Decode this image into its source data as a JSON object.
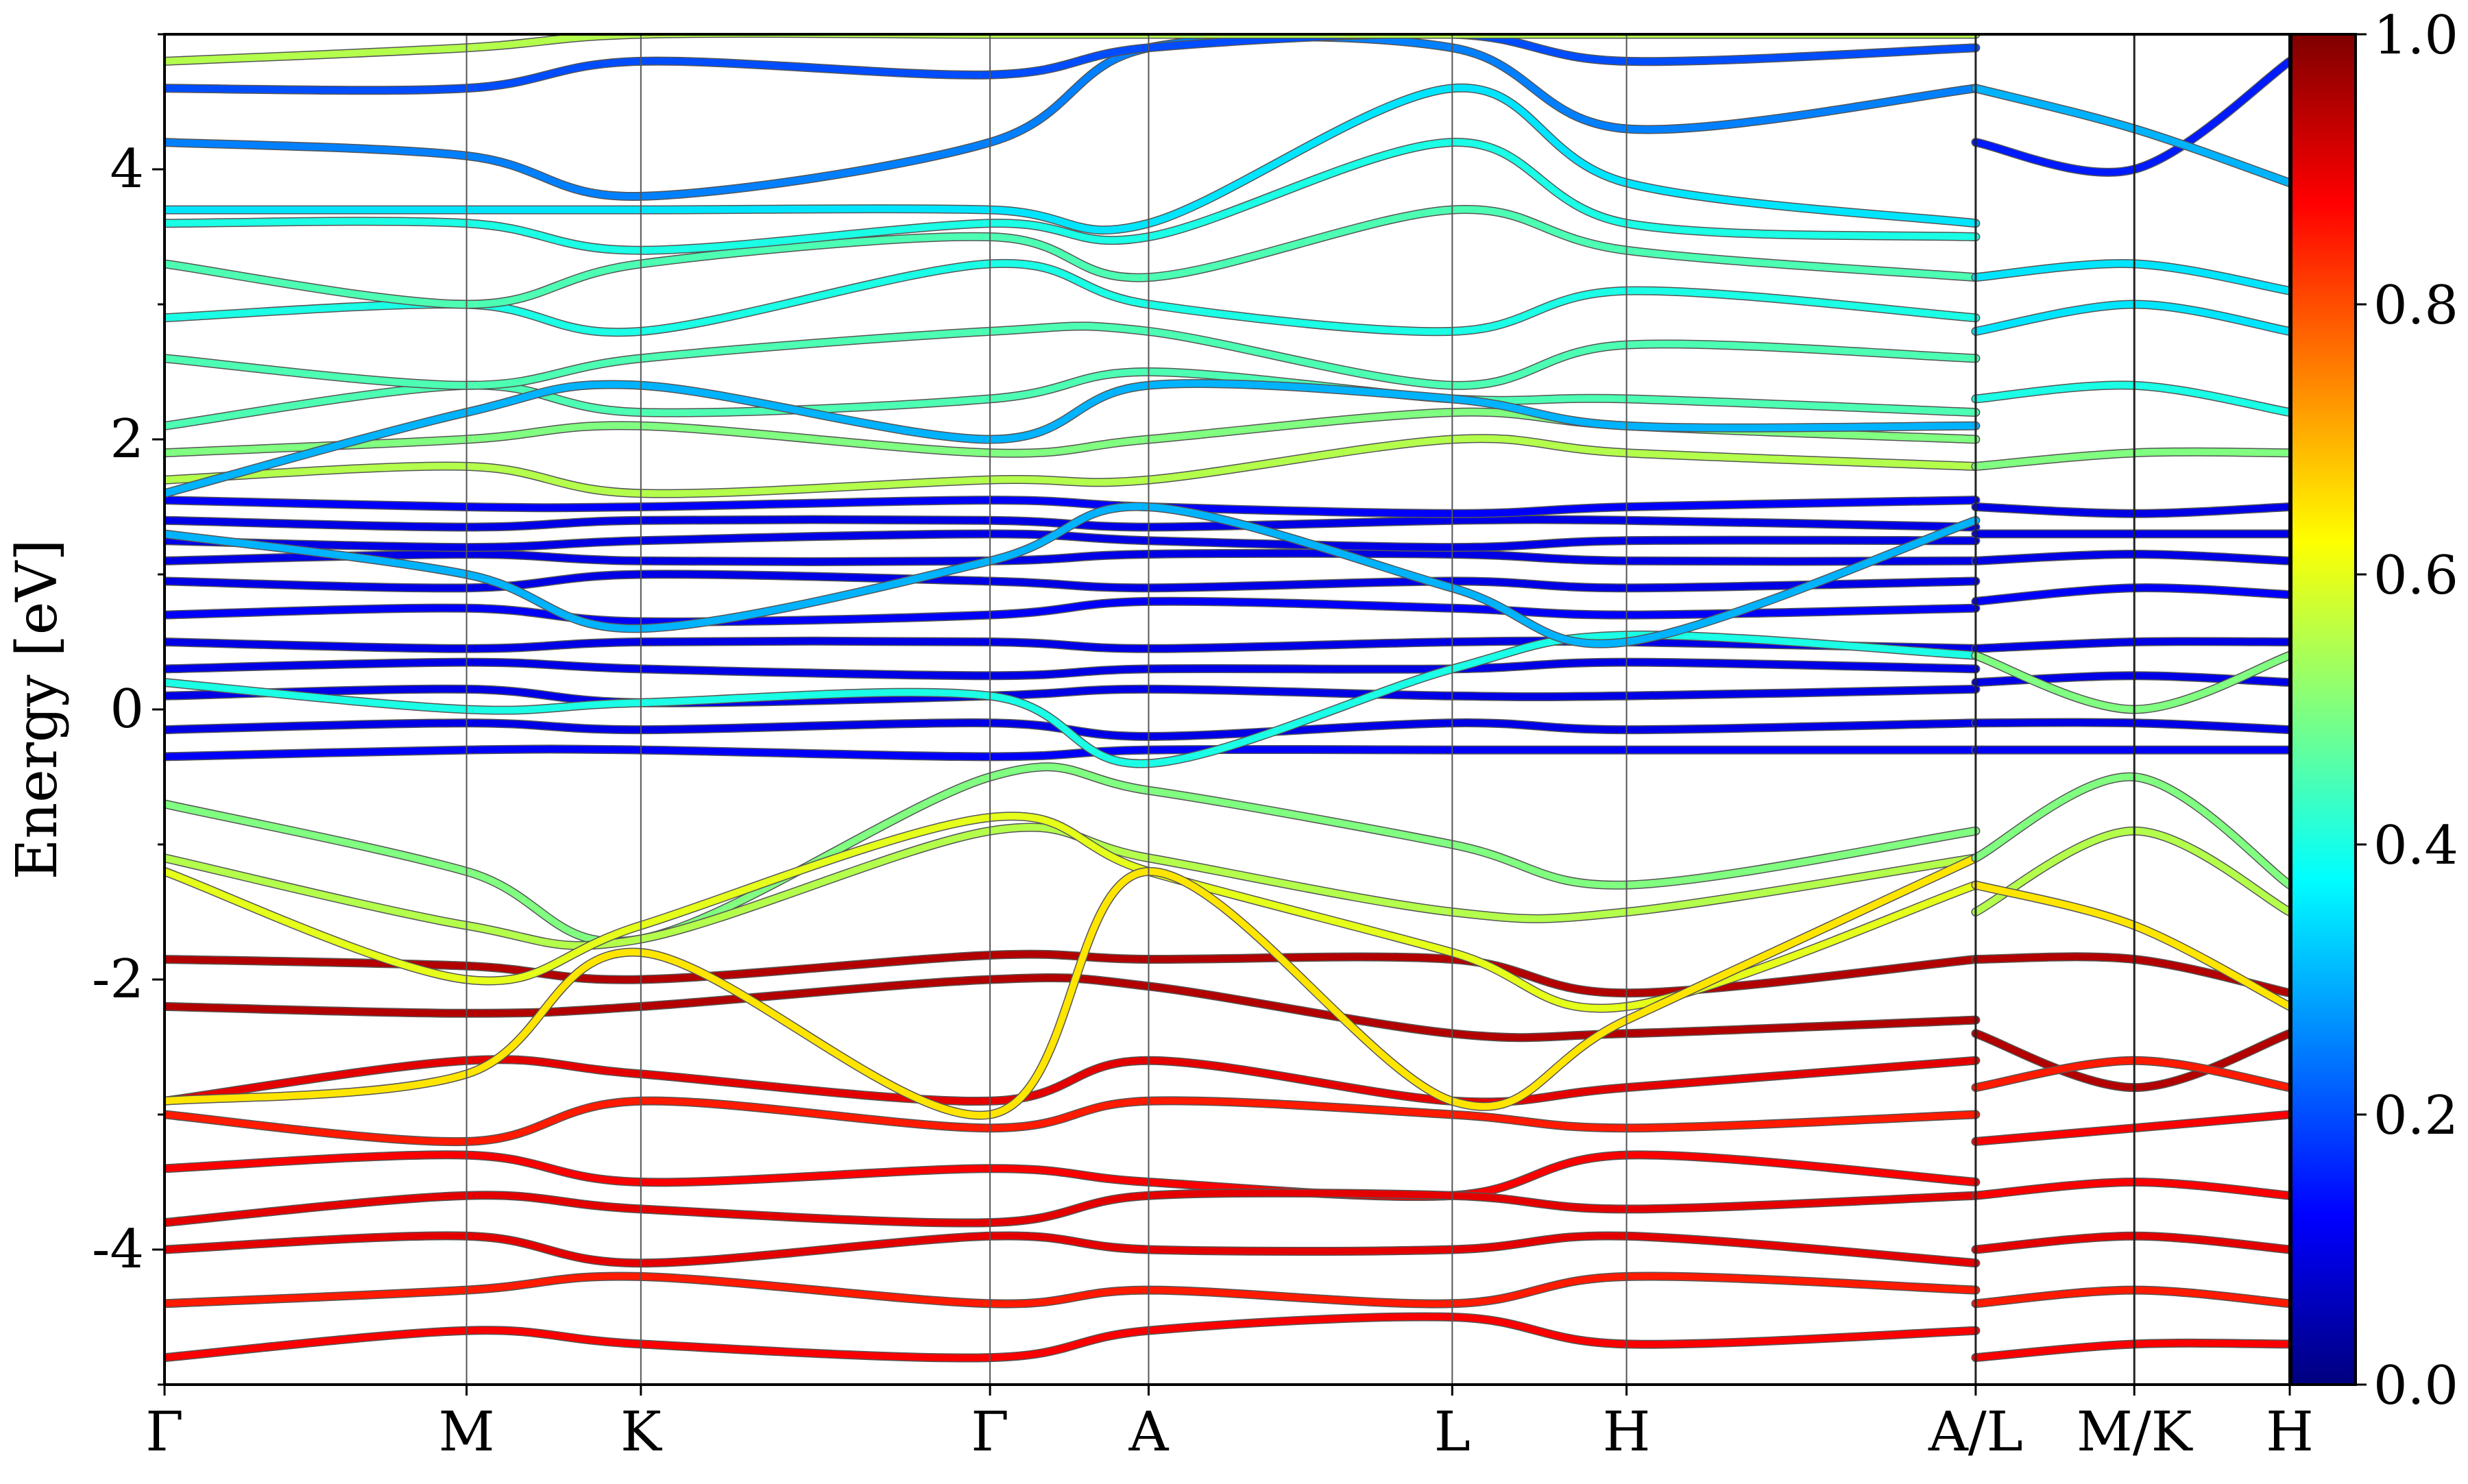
{
  "chart_data": {
    "type": "line",
    "title": "",
    "xlabel": "",
    "ylabel": "Energy [eV]",
    "ylim": [
      -5,
      5
    ],
    "y_ticks": [
      -4,
      -2,
      0,
      2,
      4
    ],
    "y_tick_labels": [
      "-4",
      "-2",
      "0",
      "2",
      "4"
    ],
    "x_ticks": [
      0,
      0.577,
      0.91,
      1.577,
      1.88,
      2.46,
      2.793,
      3.46,
      3.763,
      4.06
    ],
    "x_tick_labels": [
      "Γ",
      "M",
      "K",
      "Γ",
      "A",
      "L",
      "H",
      "A/L",
      "M/K",
      "H"
    ],
    "xlim": [
      0,
      4.06
    ],
    "grid": "vertical lines at high-symmetry points",
    "colormap": "jet",
    "colorbar": {
      "range": [
        0,
        1
      ],
      "ticks": [
        0.0,
        0.2,
        0.4,
        0.6,
        0.8,
        1.0
      ],
      "tick_labels": [
        "0.0",
        "0.2",
        "0.4",
        "0.6",
        "0.8",
        "1.0"
      ]
    },
    "bands": [
      {
        "k": [
          0,
          0.577,
          0.91,
          1.577,
          1.88,
          2.46,
          2.793,
          3.46
        ],
        "e": [
          -1.85,
          -1.9,
          -2.0,
          -1.82,
          -1.85,
          -1.85,
          -2.1,
          -1.85
        ],
        "w": 0.95
      },
      {
        "k": [
          0,
          0.577,
          0.91,
          1.577,
          1.88,
          2.46,
          2.793,
          3.46
        ],
        "e": [
          -2.2,
          -2.25,
          -2.2,
          -2.0,
          -2.05,
          -2.4,
          -2.4,
          -2.3
        ],
        "w": 0.95
      },
      {
        "k": [
          0,
          0.577,
          0.91,
          1.577,
          1.88,
          2.46,
          2.793,
          3.46
        ],
        "e": [
          -2.9,
          -2.6,
          -2.7,
          -2.9,
          -2.6,
          -2.9,
          -2.8,
          -2.6
        ],
        "w": 0.9
      },
      {
        "k": [
          0,
          0.577,
          0.91,
          1.577,
          1.88,
          2.46,
          2.793,
          3.46
        ],
        "e": [
          -3.0,
          -3.2,
          -2.9,
          -3.1,
          -2.9,
          -3.0,
          -3.1,
          -3.0
        ],
        "w": 0.85
      },
      {
        "k": [
          0,
          0.577,
          0.91,
          1.577,
          1.88,
          2.46,
          2.793,
          3.46
        ],
        "e": [
          -3.4,
          -3.3,
          -3.5,
          -3.4,
          -3.5,
          -3.6,
          -3.3,
          -3.5
        ],
        "w": 0.88
      },
      {
        "k": [
          0,
          0.577,
          0.91,
          1.577,
          1.88,
          2.46,
          2.793,
          3.46
        ],
        "e": [
          -3.8,
          -3.6,
          -3.7,
          -3.8,
          -3.6,
          -3.6,
          -3.7,
          -3.6
        ],
        "w": 0.9
      },
      {
        "k": [
          0,
          0.577,
          0.91,
          1.577,
          1.88,
          2.46,
          2.793,
          3.46
        ],
        "e": [
          -4.0,
          -3.9,
          -4.1,
          -3.9,
          -4.0,
          -4.0,
          -3.9,
          -4.1
        ],
        "w": 0.9
      },
      {
        "k": [
          0,
          0.577,
          0.91,
          1.577,
          1.88,
          2.46,
          2.793,
          3.46
        ],
        "e": [
          -4.4,
          -4.3,
          -4.2,
          -4.4,
          -4.3,
          -4.4,
          -4.2,
          -4.3
        ],
        "w": 0.85
      },
      {
        "k": [
          0,
          0.577,
          0.91,
          1.577,
          1.88,
          2.46,
          2.793,
          3.46
        ],
        "e": [
          -4.8,
          -4.6,
          -4.7,
          -4.8,
          -4.6,
          -4.5,
          -4.7,
          -4.6
        ],
        "w": 0.88
      },
      {
        "k": [
          0,
          0.577,
          0.91,
          1.577,
          1.88,
          2.46,
          2.793,
          3.46
        ],
        "e": [
          -0.35,
          -0.3,
          -0.3,
          -0.35,
          -0.3,
          -0.3,
          -0.3,
          -0.3
        ],
        "w": 0.12
      },
      {
        "k": [
          0,
          0.577,
          0.91,
          1.577,
          1.88,
          2.46,
          2.793,
          3.46
        ],
        "e": [
          -0.15,
          -0.1,
          -0.15,
          -0.1,
          -0.2,
          -0.1,
          -0.15,
          -0.1
        ],
        "w": 0.1
      },
      {
        "k": [
          0,
          0.577,
          0.91,
          1.577,
          1.88,
          2.46,
          2.793,
          3.46
        ],
        "e": [
          0.1,
          0.15,
          0.05,
          0.1,
          0.15,
          0.1,
          0.1,
          0.15
        ],
        "w": 0.1
      },
      {
        "k": [
          0,
          0.577,
          0.91,
          1.577,
          1.88,
          2.46,
          2.793,
          3.46
        ],
        "e": [
          0.3,
          0.35,
          0.3,
          0.25,
          0.3,
          0.3,
          0.35,
          0.3
        ],
        "w": 0.1
      },
      {
        "k": [
          0,
          0.577,
          0.91,
          1.577,
          1.88,
          2.46,
          2.793,
          3.46
        ],
        "e": [
          0.5,
          0.45,
          0.5,
          0.5,
          0.45,
          0.5,
          0.5,
          0.45
        ],
        "w": 0.1
      },
      {
        "k": [
          0,
          0.577,
          0.91,
          1.577,
          1.88,
          2.46,
          2.793,
          3.46
        ],
        "e": [
          0.7,
          0.75,
          0.65,
          0.7,
          0.8,
          0.75,
          0.7,
          0.75
        ],
        "w": 0.12
      },
      {
        "k": [
          0,
          0.577,
          0.91,
          1.577,
          1.88,
          2.46,
          2.793,
          3.46
        ],
        "e": [
          0.95,
          0.9,
          1.0,
          0.95,
          0.9,
          0.95,
          0.9,
          0.95
        ],
        "w": 0.1
      },
      {
        "k": [
          0,
          0.577,
          0.91,
          1.577,
          1.88,
          2.46,
          2.793,
          3.46
        ],
        "e": [
          1.1,
          1.15,
          1.1,
          1.1,
          1.15,
          1.15,
          1.1,
          1.1
        ],
        "w": 0.1
      },
      {
        "k": [
          0,
          0.577,
          0.91,
          1.577,
          1.88,
          2.46,
          2.793,
          3.46
        ],
        "e": [
          1.25,
          1.2,
          1.25,
          1.3,
          1.25,
          1.2,
          1.25,
          1.25
        ],
        "w": 0.1
      },
      {
        "k": [
          0,
          0.577,
          0.91,
          1.577,
          1.88,
          2.46,
          2.793,
          3.46
        ],
        "e": [
          1.4,
          1.35,
          1.4,
          1.4,
          1.35,
          1.4,
          1.4,
          1.35
        ],
        "w": 0.1
      },
      {
        "k": [
          0,
          0.577,
          0.91,
          1.577,
          1.88,
          2.46,
          2.793,
          3.46
        ],
        "e": [
          1.55,
          1.5,
          1.5,
          1.55,
          1.5,
          1.45,
          1.5,
          1.55
        ],
        "w": 0.12
      },
      {
        "k": [
          0,
          0.577,
          0.91,
          1.577,
          1.88,
          2.46,
          2.793,
          3.46
        ],
        "e": [
          -0.7,
          -1.2,
          -1.7,
          -0.5,
          -0.6,
          -1.0,
          -1.3,
          -0.9
        ],
        "w": 0.5
      },
      {
        "k": [
          0,
          0.577,
          0.91,
          1.577,
          1.88,
          2.46,
          2.793,
          3.46
        ],
        "e": [
          -1.1,
          -1.6,
          -1.7,
          -0.9,
          -1.1,
          -1.5,
          -1.5,
          -1.1
        ],
        "w": 0.55
      },
      {
        "k": [
          0,
          0.577,
          0.91,
          1.577,
          1.88,
          2.46,
          2.793,
          3.46
        ],
        "e": [
          -1.2,
          -2.0,
          -1.6,
          -0.8,
          -1.2,
          -1.8,
          -2.2,
          -1.3
        ],
        "w": 0.6
      },
      {
        "k": [
          0,
          0.577,
          0.91,
          1.577,
          1.88,
          2.46,
          2.793,
          3.46
        ],
        "e": [
          -2.9,
          -2.7,
          -1.8,
          -3.0,
          -1.2,
          -2.9,
          -2.3,
          -1.1
        ],
        "w": 0.65
      },
      {
        "k": [
          0,
          0.577,
          0.91,
          1.577,
          1.88,
          2.46,
          2.793,
          3.46
        ],
        "e": [
          0.2,
          0.0,
          0.05,
          0.1,
          -0.4,
          0.3,
          0.55,
          0.4
        ],
        "w": 0.4
      },
      {
        "k": [
          0,
          0.577,
          0.91,
          1.577,
          1.88,
          2.46,
          2.793,
          3.46
        ],
        "e": [
          1.7,
          1.8,
          1.6,
          1.7,
          1.7,
          2.0,
          1.9,
          1.8
        ],
        "w": 0.55
      },
      {
        "k": [
          0,
          0.577,
          0.91,
          1.577,
          1.88,
          2.46,
          2.793,
          3.46
        ],
        "e": [
          1.9,
          2.0,
          2.1,
          1.9,
          2.0,
          2.2,
          2.1,
          2.0
        ],
        "w": 0.5
      },
      {
        "k": [
          0,
          0.577,
          0.91,
          1.577,
          1.88,
          2.46,
          2.793,
          3.46
        ],
        "e": [
          2.1,
          2.4,
          2.2,
          2.3,
          2.5,
          2.3,
          2.3,
          2.2
        ],
        "w": 0.45
      },
      {
        "k": [
          0,
          0.577,
          0.91,
          1.577,
          1.88,
          2.46,
          2.793,
          3.46
        ],
        "e": [
          2.6,
          2.4,
          2.6,
          2.8,
          2.8,
          2.4,
          2.7,
          2.6
        ],
        "w": 0.45
      },
      {
        "k": [
          0,
          0.577,
          0.91,
          1.577,
          1.88,
          2.46,
          2.793,
          3.46
        ],
        "e": [
          2.9,
          3.0,
          2.8,
          3.3,
          3.0,
          2.8,
          3.1,
          2.9
        ],
        "w": 0.4
      },
      {
        "k": [
          0,
          0.577,
          0.91,
          1.577,
          1.88,
          2.46,
          2.793,
          3.46
        ],
        "e": [
          3.3,
          3.0,
          3.3,
          3.5,
          3.2,
          3.7,
          3.4,
          3.2
        ],
        "w": 0.45
      },
      {
        "k": [
          0,
          0.577,
          0.91,
          1.577,
          1.88,
          2.46,
          2.793,
          3.46
        ],
        "e": [
          3.6,
          3.6,
          3.4,
          3.6,
          3.5,
          4.2,
          3.6,
          3.5
        ],
        "w": 0.4
      },
      {
        "k": [
          0,
          0.577,
          0.91,
          1.577,
          1.88,
          2.46,
          2.793,
          3.46
        ],
        "e": [
          3.7,
          3.7,
          3.7,
          3.7,
          3.6,
          4.6,
          3.9,
          3.6
        ],
        "w": 0.35
      },
      {
        "k": [
          0,
          0.577,
          0.91,
          1.577,
          1.88,
          2.46,
          2.793,
          3.46
        ],
        "e": [
          4.2,
          4.1,
          3.8,
          4.2,
          4.9,
          4.9,
          4.3,
          4.6
        ],
        "w": 0.25
      },
      {
        "k": [
          0,
          0.577,
          0.91,
          1.577,
          1.88,
          2.46,
          2.793,
          3.46
        ],
        "e": [
          4.6,
          4.6,
          4.8,
          4.7,
          4.9,
          5.0,
          4.8,
          4.9
        ],
        "w": 0.2
      },
      {
        "k": [
          0,
          0.577,
          0.91,
          1.577,
          1.88,
          2.46,
          2.793,
          3.46
        ],
        "e": [
          4.8,
          4.9,
          5.0,
          5.0,
          5.0,
          5.0,
          5.0,
          5.0
        ],
        "w": 0.55
      },
      {
        "k": [
          0,
          0.577,
          0.91,
          1.577,
          1.88,
          2.46,
          2.793,
          3.46
        ],
        "e": [
          1.6,
          2.2,
          2.4,
          2.0,
          2.4,
          2.3,
          2.1,
          2.1
        ],
        "w": 0.3
      },
      {
        "k": [
          0,
          0.577,
          0.91,
          1.577,
          1.88,
          2.46,
          2.793,
          3.46
        ],
        "e": [
          1.3,
          1.0,
          0.6,
          1.1,
          1.5,
          0.9,
          0.5,
          1.4
        ],
        "w": 0.3
      },
      {
        "k": [
          3.46,
          3.763,
          4.06
        ],
        "e": [
          -1.85,
          -1.85,
          -2.1
        ],
        "w": 0.95
      },
      {
        "k": [
          3.46,
          3.763,
          4.06
        ],
        "e": [
          -2.4,
          -2.8,
          -2.4
        ],
        "w": 0.95
      },
      {
        "k": [
          3.46,
          3.763,
          4.06
        ],
        "e": [
          -2.8,
          -2.6,
          -2.8
        ],
        "w": 0.85
      },
      {
        "k": [
          3.46,
          3.763,
          4.06
        ],
        "e": [
          -3.2,
          -3.1,
          -3.0
        ],
        "w": 0.88
      },
      {
        "k": [
          3.46,
          3.763,
          4.06
        ],
        "e": [
          -3.6,
          -3.5,
          -3.6
        ],
        "w": 0.88
      },
      {
        "k": [
          3.46,
          3.763,
          4.06
        ],
        "e": [
          -4.0,
          -3.9,
          -4.0
        ],
        "w": 0.9
      },
      {
        "k": [
          3.46,
          3.763,
          4.06
        ],
        "e": [
          -4.4,
          -4.3,
          -4.4
        ],
        "w": 0.85
      },
      {
        "k": [
          3.46,
          3.763,
          4.06
        ],
        "e": [
          -4.8,
          -4.7,
          -4.7
        ],
        "w": 0.88
      },
      {
        "k": [
          3.46,
          3.763,
          4.06
        ],
        "e": [
          -1.1,
          -0.5,
          -1.3
        ],
        "w": 0.5
      },
      {
        "k": [
          3.46,
          3.763,
          4.06
        ],
        "e": [
          -1.5,
          -0.9,
          -1.5
        ],
        "w": 0.55
      },
      {
        "k": [
          3.46,
          3.763,
          4.06
        ],
        "e": [
          -1.3,
          -1.6,
          -2.2
        ],
        "w": 0.65
      },
      {
        "k": [
          3.46,
          3.763,
          4.06
        ],
        "e": [
          -0.3,
          -0.3,
          -0.3
        ],
        "w": 0.12
      },
      {
        "k": [
          3.46,
          3.763,
          4.06
        ],
        "e": [
          -0.1,
          -0.1,
          -0.15
        ],
        "w": 0.1
      },
      {
        "k": [
          3.46,
          3.763,
          4.06
        ],
        "e": [
          0.2,
          0.25,
          0.2
        ],
        "w": 0.1
      },
      {
        "k": [
          3.46,
          3.763,
          4.06
        ],
        "e": [
          0.45,
          0.5,
          0.5
        ],
        "w": 0.1
      },
      {
        "k": [
          3.46,
          3.763,
          4.06
        ],
        "e": [
          0.8,
          0.9,
          0.85
        ],
        "w": 0.12
      },
      {
        "k": [
          3.46,
          3.763,
          4.06
        ],
        "e": [
          1.1,
          1.15,
          1.1
        ],
        "w": 0.1
      },
      {
        "k": [
          3.46,
          3.763,
          4.06
        ],
        "e": [
          1.3,
          1.3,
          1.3
        ],
        "w": 0.1
      },
      {
        "k": [
          3.46,
          3.763,
          4.06
        ],
        "e": [
          1.5,
          1.45,
          1.5
        ],
        "w": 0.1
      },
      {
        "k": [
          3.46,
          3.763,
          4.06
        ],
        "e": [
          0.4,
          0.0,
          0.4
        ],
        "w": 0.5
      },
      {
        "k": [
          3.46,
          3.763,
          4.06
        ],
        "e": [
          1.8,
          1.9,
          1.9
        ],
        "w": 0.5
      },
      {
        "k": [
          3.46,
          3.763,
          4.06
        ],
        "e": [
          2.3,
          2.4,
          2.2
        ],
        "w": 0.4
      },
      {
        "k": [
          3.46,
          3.763,
          4.06
        ],
        "e": [
          2.8,
          3.0,
          2.8
        ],
        "w": 0.35
      },
      {
        "k": [
          3.46,
          3.763,
          4.06
        ],
        "e": [
          3.2,
          3.3,
          3.1
        ],
        "w": 0.35
      },
      {
        "k": [
          3.46,
          3.763,
          4.06
        ],
        "e": [
          4.2,
          4.0,
          4.8
        ],
        "w": 0.15
      },
      {
        "k": [
          3.46,
          3.763,
          4.06
        ],
        "e": [
          4.6,
          4.3,
          3.9
        ],
        "w": 0.3
      }
    ]
  }
}
